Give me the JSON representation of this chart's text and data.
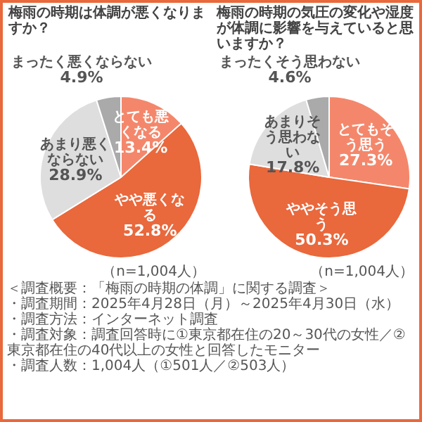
{
  "chart_data": [
    {
      "type": "pie",
      "title": "梅雨の時期は体調が悪くなりますか？",
      "categories": [
        "とても悪くなる",
        "やや悪くなる",
        "あまり悪くならない",
        "まったく悪くならない"
      ],
      "values": [
        13.4,
        52.8,
        28.9,
        4.9
      ],
      "value_labels": [
        "13.4%",
        "52.8%",
        "28.9%",
        "4.9%"
      ],
      "colors": [
        "#f4876b",
        "#e9683c",
        "#dedede",
        "#aaaaaa"
      ],
      "legend": false,
      "annotations": [
        "（n=1,004人）",
        "＜調査概要：「梅雨の時期の体調」に関する調査＞",
        "・調査期間：2025年4月28日（月）～2025年4月30日（水）",
        "・調査方法：インターネット調査",
        "・調査対象：調査回答時に①東京都在住の20～30代の女性／②東京都在住の40代以上の女性と回答したモニター",
        "・調査人数：1,004人（①501人／②503人）"
      ]
    },
    {
      "type": "pie",
      "title": "梅雨の時期の気圧の変化や湿度が体調に影響を与えていると思いますか？",
      "categories": [
        "とてもそう思う",
        "ややそう思う",
        "あまりそう思わない",
        "まったくそう思わない"
      ],
      "values": [
        27.3,
        50.3,
        17.8,
        4.6
      ],
      "value_labels": [
        "27.3%",
        "50.3%",
        "17.8%",
        "4.6%"
      ],
      "colors": [
        "#f4876b",
        "#e9683c",
        "#dedede",
        "#aaaaaa"
      ],
      "legend": false,
      "annotations": [
        "（n=1,004人）"
      ]
    }
  ]
}
